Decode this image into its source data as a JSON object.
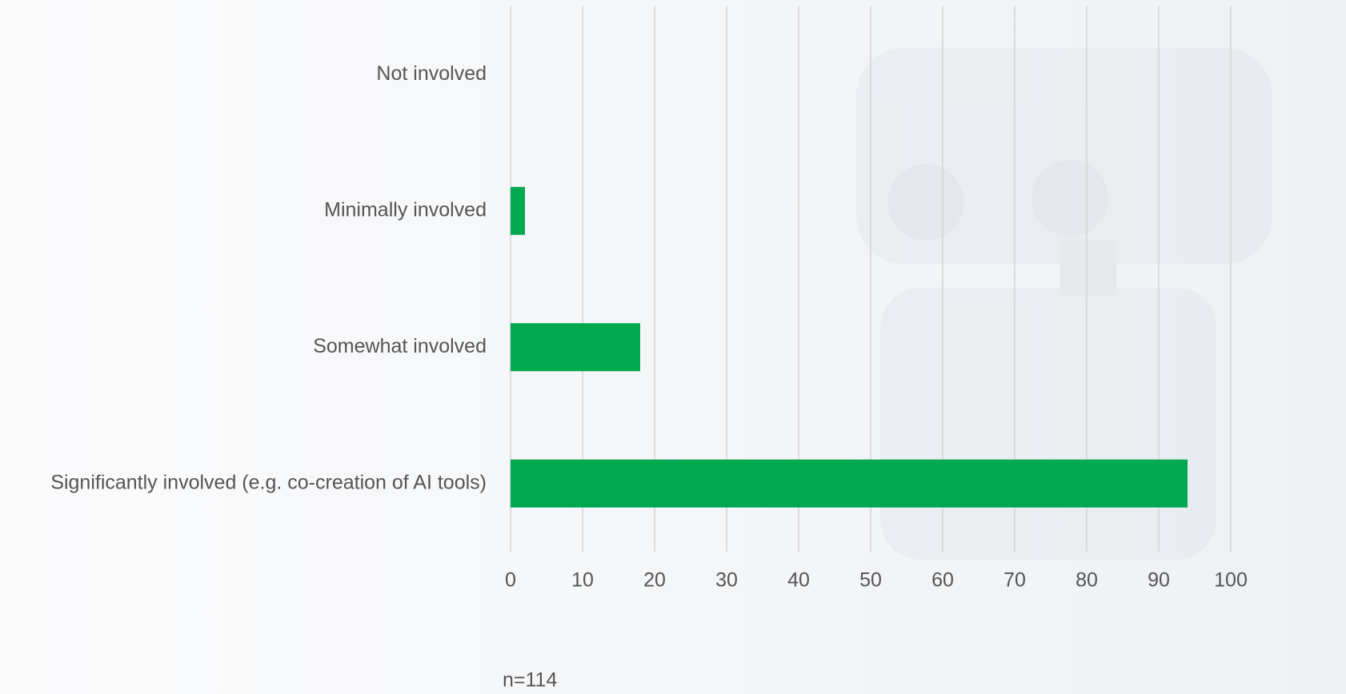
{
  "chart_data": {
    "type": "bar",
    "orientation": "horizontal",
    "categories": [
      "Not involved",
      "Minimally involved",
      "Somewhat involved",
      "Significantly involved (e.g. co-creation of AI tools)"
    ],
    "values": [
      0,
      2,
      18,
      94
    ],
    "color": "#00a84f",
    "xlim": [
      0,
      100
    ],
    "xticks": [
      0,
      10,
      20,
      30,
      40,
      50,
      60,
      70,
      80,
      90,
      100
    ],
    "grid": true,
    "annotation": "n=114"
  }
}
